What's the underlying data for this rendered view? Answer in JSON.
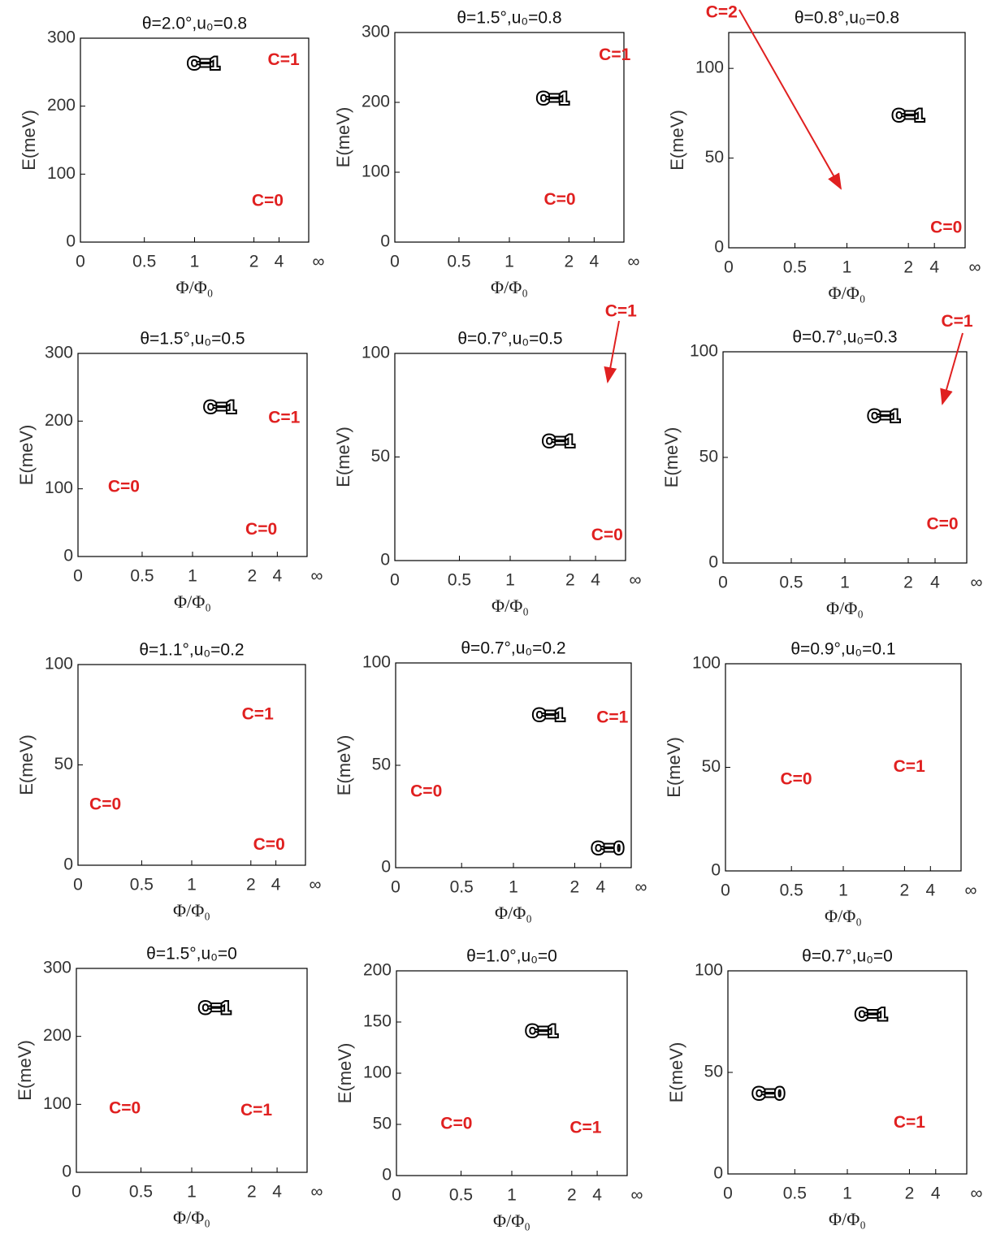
{
  "chart_data": [
    {
      "type": "line",
      "title": "θ=2.0°,u₀=0.8",
      "x_label": "Φ/Φ₀",
      "y_label": "E(meV)",
      "ylim": [
        0,
        300
      ],
      "yticks": [
        0,
        100,
        200,
        300
      ],
      "xticks": [
        0,
        0.5,
        1,
        2,
        4,
        {
          "value": null,
          "label": "∞"
        }
      ],
      "annotations": [
        {
          "text": "C=1",
          "color": "#ffffff"
        },
        {
          "text": "C=1",
          "color": "#e02020"
        },
        {
          "text": "C=0",
          "color": "#e02020"
        }
      ]
    },
    {
      "type": "line",
      "title": "θ=1.5°,u₀=0.8",
      "x_label": "Φ/Φ₀",
      "y_label": "E(meV)",
      "ylim": [
        0,
        300
      ],
      "yticks": [
        0,
        100,
        200,
        300
      ],
      "xticks": [
        0,
        0.5,
        1,
        2,
        4,
        {
          "value": null,
          "label": "∞"
        }
      ],
      "annotations": [
        {
          "text": "C=1",
          "color": "#ffffff"
        },
        {
          "text": "C=1",
          "color": "#e02020"
        },
        {
          "text": "C=0",
          "color": "#e02020"
        }
      ]
    },
    {
      "type": "line",
      "title": "θ=0.8°,u₀=0.8",
      "x_label": "Φ/Φ₀",
      "y_label": "E(meV)",
      "ylim": [
        0,
        120
      ],
      "yticks": [
        0,
        50,
        100
      ],
      "xticks": [
        0,
        0.5,
        1,
        2,
        4,
        {
          "value": null,
          "label": "∞"
        }
      ],
      "annotations": [
        {
          "text": "C=2",
          "color": "#e02020"
        },
        {
          "text": "C=1",
          "color": "#ffffff"
        },
        {
          "text": "C=0",
          "color": "#e02020"
        }
      ]
    },
    {
      "type": "line",
      "title": "θ=1.5°,u₀=0.5",
      "x_label": "Φ/Φ₀",
      "y_label": "E(meV)",
      "ylim": [
        0,
        300
      ],
      "yticks": [
        0,
        100,
        200,
        300
      ],
      "xticks": [
        0,
        0.5,
        1,
        2,
        4,
        {
          "value": null,
          "label": "∞"
        }
      ],
      "annotations": [
        {
          "text": "C=1",
          "color": "#ffffff"
        },
        {
          "text": "C=1",
          "color": "#e02020"
        },
        {
          "text": "C=0",
          "color": "#e02020"
        },
        {
          "text": "C=0",
          "color": "#e02020"
        }
      ]
    },
    {
      "type": "line",
      "title": "θ=0.7°,u₀=0.5",
      "x_label": "Φ/Φ₀",
      "y_label": "E(meV)",
      "ylim": [
        0,
        100
      ],
      "yticks": [
        0,
        50,
        100
      ],
      "xticks": [
        0,
        0.5,
        1,
        2,
        4,
        {
          "value": null,
          "label": "∞"
        }
      ],
      "annotations": [
        {
          "text": "C=1",
          "color": "#e02020"
        },
        {
          "text": "C=1",
          "color": "#ffffff"
        },
        {
          "text": "C=0",
          "color": "#e02020"
        }
      ]
    },
    {
      "type": "line",
      "title": "θ=0.7°,u₀=0.3",
      "x_label": "Φ/Φ₀",
      "y_label": "E(meV)",
      "ylim": [
        0,
        100
      ],
      "yticks": [
        0,
        50,
        100
      ],
      "xticks": [
        0,
        0.5,
        1,
        2,
        4,
        {
          "value": null,
          "label": "∞"
        }
      ],
      "annotations": [
        {
          "text": "C=1",
          "color": "#e02020"
        },
        {
          "text": "C=1",
          "color": "#ffffff"
        },
        {
          "text": "C=0",
          "color": "#e02020"
        }
      ]
    },
    {
      "type": "line",
      "title": "θ=1.1°,u₀=0.2",
      "x_label": "Φ/Φ₀",
      "y_label": "E(meV)",
      "ylim": [
        0,
        100
      ],
      "yticks": [
        0,
        50,
        100
      ],
      "xticks": [
        0,
        0.5,
        1,
        2,
        4,
        {
          "value": null,
          "label": "∞"
        }
      ],
      "annotations": [
        {
          "text": "C=1",
          "color": "#e02020"
        },
        {
          "text": "C=0",
          "color": "#e02020"
        },
        {
          "text": "C=0",
          "color": "#e02020"
        }
      ]
    },
    {
      "type": "line",
      "title": "θ=0.7°,u₀=0.2",
      "x_label": "Φ/Φ₀",
      "y_label": "E(meV)",
      "ylim": [
        0,
        100
      ],
      "yticks": [
        0,
        50,
        100
      ],
      "xticks": [
        0,
        0.5,
        1,
        2,
        4,
        {
          "value": null,
          "label": "∞"
        }
      ],
      "annotations": [
        {
          "text": "C=1",
          "color": "#ffffff"
        },
        {
          "text": "C=1",
          "color": "#e02020"
        },
        {
          "text": "C=0",
          "color": "#e02020"
        },
        {
          "text": "C=0",
          "color": "#ffffff"
        }
      ]
    },
    {
      "type": "line",
      "title": "θ=0.9°,u₀=0.1",
      "x_label": "Φ/Φ₀",
      "y_label": "E(meV)",
      "ylim": [
        0,
        100
      ],
      "yticks": [
        0,
        50,
        100
      ],
      "xticks": [
        0,
        0.5,
        1,
        2,
        4,
        {
          "value": null,
          "label": "∞"
        }
      ],
      "annotations": [
        {
          "text": "C=0",
          "color": "#e02020"
        },
        {
          "text": "C=1",
          "color": "#e02020"
        }
      ]
    },
    {
      "type": "line",
      "title": "θ=1.5°,u₀=0",
      "x_label": "Φ/Φ₀",
      "y_label": "E(meV)",
      "ylim": [
        0,
        300
      ],
      "yticks": [
        0,
        100,
        200,
        300
      ],
      "xticks": [
        0,
        0.5,
        1,
        2,
        4,
        {
          "value": null,
          "label": "∞"
        }
      ],
      "annotations": [
        {
          "text": "C=1",
          "color": "#ffffff"
        },
        {
          "text": "C=0",
          "color": "#e02020"
        },
        {
          "text": "C=1",
          "color": "#e02020"
        }
      ]
    },
    {
      "type": "line",
      "title": "θ=1.0°,u₀=0",
      "x_label": "Φ/Φ₀",
      "y_label": "E(meV)",
      "ylim": [
        0,
        200
      ],
      "yticks": [
        0,
        50,
        100,
        150,
        200
      ],
      "xticks": [
        0,
        0.5,
        1,
        2,
        4,
        {
          "value": null,
          "label": "∞"
        }
      ],
      "annotations": [
        {
          "text": "C=1",
          "color": "#ffffff"
        },
        {
          "text": "C=0",
          "color": "#e02020"
        },
        {
          "text": "C=1",
          "color": "#e02020"
        }
      ]
    },
    {
      "type": "line",
      "title": "θ=0.7°,u₀=0",
      "x_label": "Φ/Φ₀",
      "y_label": "E(meV)",
      "ylim": [
        0,
        100
      ],
      "yticks": [
        0,
        50,
        100
      ],
      "xticks": [
        0,
        0.5,
        1,
        2,
        4,
        {
          "value": null,
          "label": "∞"
        }
      ],
      "annotations": [
        {
          "text": "C=1",
          "color": "#ffffff"
        },
        {
          "text": "C=0",
          "color": "#ffffff"
        },
        {
          "text": "C=1",
          "color": "#e02020"
        }
      ]
    }
  ]
}
